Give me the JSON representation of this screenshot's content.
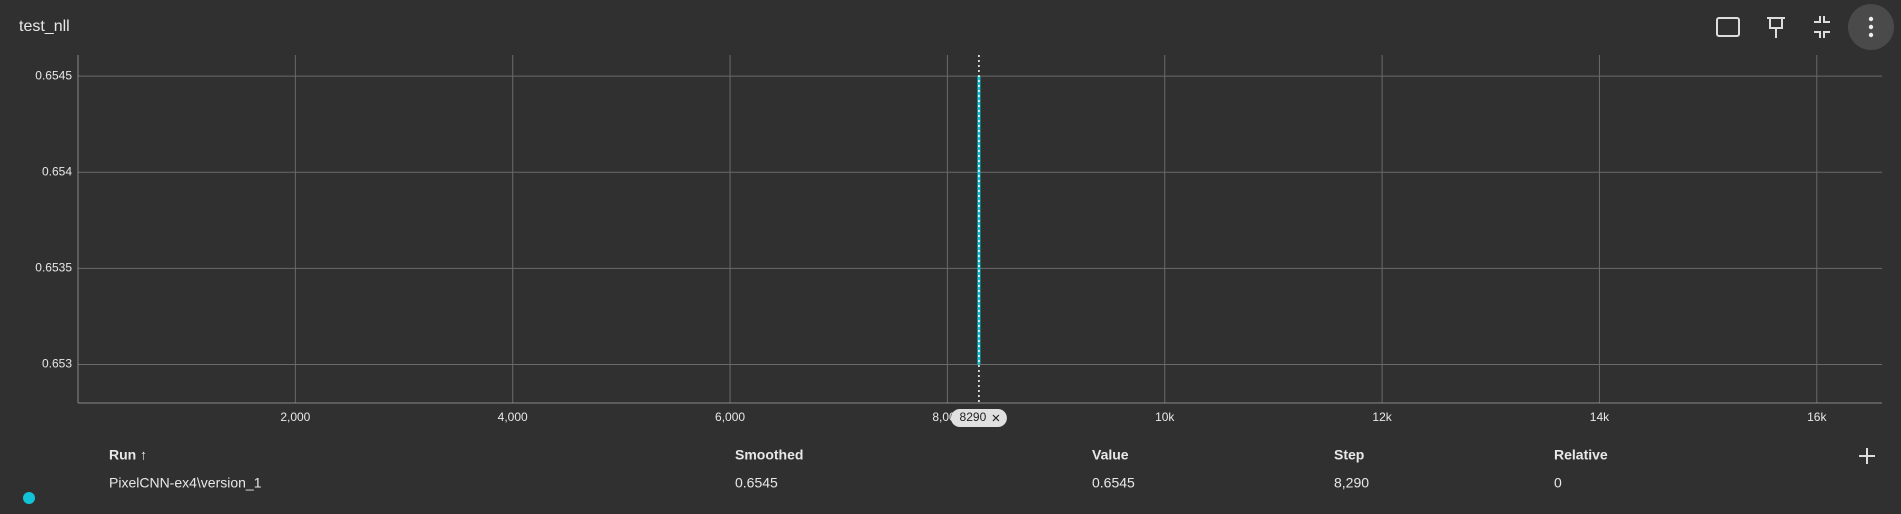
{
  "chart_data": {
    "type": "line",
    "title": "test_nll",
    "x": [
      8290,
      8290
    ],
    "series": [
      {
        "name": "PixelCNN-ex4\\version_1",
        "color": "#12c3d6",
        "values": [
          0.653,
          0.6545
        ]
      }
    ],
    "xlim": [
      0,
      16600
    ],
    "ylim": [
      0.6528,
      0.65461
    ],
    "xticks": [
      {
        "value": 2000,
        "label": "2,000"
      },
      {
        "value": 4000,
        "label": "4,000"
      },
      {
        "value": 6000,
        "label": "6,000"
      },
      {
        "value": 8000,
        "label": "8,000"
      },
      {
        "value": 10000,
        "label": "10k"
      },
      {
        "value": 12000,
        "label": "12k"
      },
      {
        "value": 14000,
        "label": "14k"
      },
      {
        "value": 16000,
        "label": "16k"
      }
    ],
    "yticks": [
      0.653,
      0.6535,
      0.654,
      0.6545
    ],
    "grid": true,
    "hover_step": 8290
  },
  "table": {
    "columns": [
      "Run ↑",
      "Smoothed",
      "Value",
      "Step",
      "Relative"
    ],
    "rows": [
      [
        "PixelCNN-ex4\\version_1",
        "0.6545",
        "0.6545",
        "8,290",
        "0"
      ]
    ]
  }
}
